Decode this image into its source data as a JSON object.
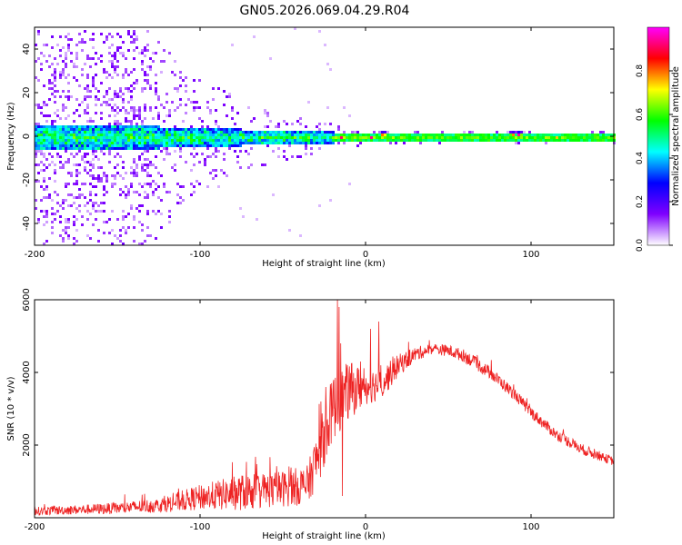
{
  "title": "GN05.2026.069.04.29.R04",
  "chart_data": [
    {
      "type": "heatmap",
      "xlabel": "Height of straight line (km)",
      "ylabel": "Frequency (Hz)",
      "xlim": [
        -200,
        150
      ],
      "ylim": [
        -50,
        50
      ],
      "x_ticks": [
        -200,
        -100,
        0,
        100
      ],
      "y_ticks": [
        -40,
        -20,
        0,
        20,
        40
      ],
      "colorbar": {
        "label": "Normalized spectral amplitude",
        "range": [
          0.0,
          1.0
        ],
        "ticks": [
          "0.0",
          "0.2",
          "0.4",
          "0.6",
          "0.8"
        ],
        "colormap": [
          "#ffffff",
          "#7f00ff",
          "#0000ff",
          "#00ffff",
          "#00ff00",
          "#ffff00",
          "#ff0000",
          "#ff00ff"
        ]
      },
      "band_center_hz": 0,
      "band_halfwidth_hz": [
        {
          "x": -200,
          "value": 6
        },
        {
          "x": -150,
          "value": 6
        },
        {
          "x": -100,
          "value": 4
        },
        {
          "x": -50,
          "value": 3.5
        },
        {
          "x": -20,
          "value": 2.5
        },
        {
          "x": 0,
          "value": 2
        },
        {
          "x": 50,
          "value": 2
        },
        {
          "x": 100,
          "value": 2
        },
        {
          "x": 150,
          "value": 2
        }
      ],
      "scatter_frequency_extent_hz": [
        {
          "x": -200,
          "value": 50
        },
        {
          "x": -130,
          "value": 50
        },
        {
          "x": -110,
          "value": 30
        },
        {
          "x": -60,
          "value": 12
        },
        {
          "x": -20,
          "value": 6
        },
        {
          "x": 0,
          "value": 3
        }
      ],
      "hot_spots": [
        {
          "x": -15,
          "freq": 0,
          "amp": 0.95
        },
        {
          "x": 3,
          "freq": 0,
          "amp": 0.95
        },
        {
          "x": 10,
          "freq": 1,
          "amp": 0.9
        },
        {
          "x": 88,
          "freq": 1,
          "amp": 0.85
        },
        {
          "x": 92,
          "freq": 1,
          "amp": 1.0
        },
        {
          "x": 115,
          "freq": 0,
          "amp": 0.75
        }
      ]
    },
    {
      "type": "line",
      "xlabel": "Height of straight line (km)",
      "ylabel": "SNR (10 * v/v)",
      "xlim": [
        -200,
        150
      ],
      "ylim": [
        0,
        6000
      ],
      "x_ticks": [
        -200,
        -100,
        0,
        100
      ],
      "y_ticks": [
        2000,
        4000,
        6000
      ],
      "series": [
        {
          "color": "#ee2222",
          "envelope": [
            {
              "x": -200,
              "mean": 180,
              "amp": 120
            },
            {
              "x": -175,
              "mean": 220,
              "amp": 130
            },
            {
              "x": -150,
              "mean": 260,
              "amp": 160
            },
            {
              "x": -125,
              "mean": 340,
              "amp": 200
            },
            {
              "x": -100,
              "mean": 560,
              "amp": 350
            },
            {
              "x": -75,
              "mean": 700,
              "amp": 500
            },
            {
              "x": -50,
              "mean": 800,
              "amp": 500
            },
            {
              "x": -35,
              "mean": 900,
              "amp": 550
            },
            {
              "x": -28,
              "mean": 1800,
              "amp": 800
            },
            {
              "x": -20,
              "mean": 3000,
              "amp": 900
            },
            {
              "x": -10,
              "mean": 3500,
              "amp": 800
            },
            {
              "x": 0,
              "mean": 3600,
              "amp": 500
            },
            {
              "x": 10,
              "mean": 3700,
              "amp": 450
            },
            {
              "x": 20,
              "mean": 4200,
              "amp": 300
            },
            {
              "x": 30,
              "mean": 4500,
              "amp": 200
            },
            {
              "x": 40,
              "mean": 4650,
              "amp": 150
            },
            {
              "x": 50,
              "mean": 4600,
              "amp": 160
            },
            {
              "x": 60,
              "mean": 4450,
              "amp": 180
            },
            {
              "x": 75,
              "mean": 4000,
              "amp": 180
            },
            {
              "x": 90,
              "mean": 3400,
              "amp": 160
            },
            {
              "x": 100,
              "mean": 2900,
              "amp": 160
            },
            {
              "x": 115,
              "mean": 2300,
              "amp": 150
            },
            {
              "x": 130,
              "mean": 1900,
              "amp": 150
            },
            {
              "x": 150,
              "mean": 1550,
              "amp": 120
            }
          ],
          "spikes": [
            {
              "x": -17,
              "value": 6000
            },
            {
              "x": -16,
              "value": 5800
            },
            {
              "x": -15,
              "value": 4800
            },
            {
              "x": -14,
              "value": 600
            },
            {
              "x": 8,
              "value": 5400
            },
            {
              "x": 3,
              "value": 5200
            },
            {
              "x": -3,
              "value": 4300
            },
            {
              "x": -24,
              "value": 3600
            },
            {
              "x": -27,
              "value": 3200
            }
          ]
        }
      ]
    }
  ]
}
